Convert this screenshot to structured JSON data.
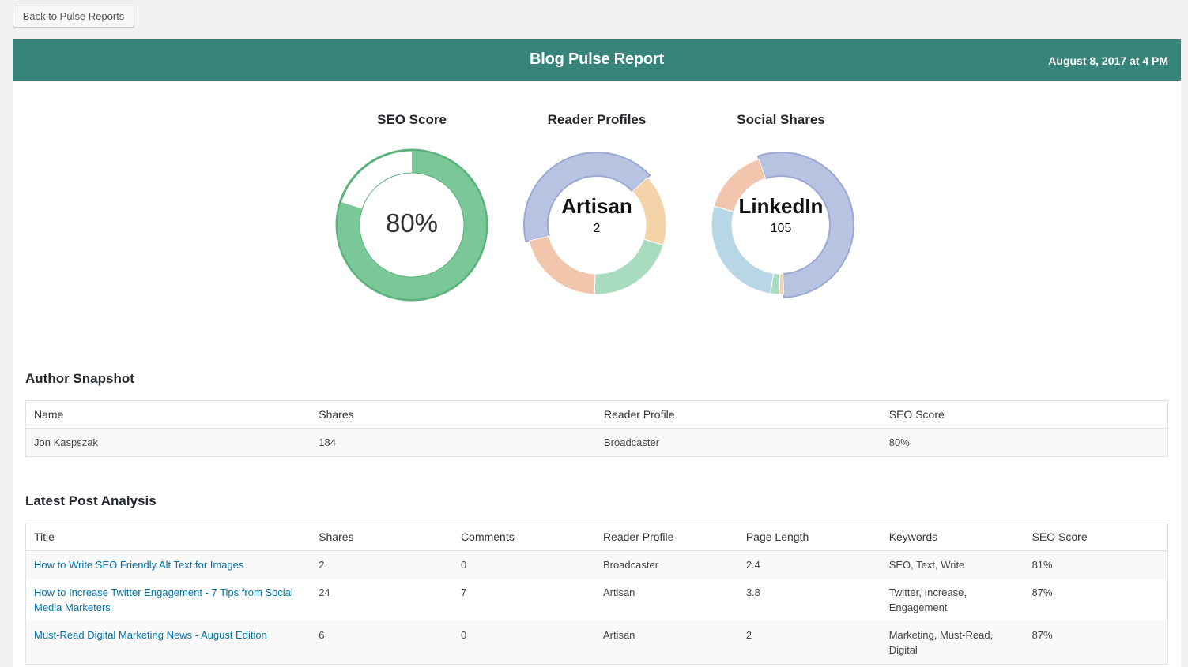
{
  "back_button": {
    "label": "Back to Pulse Reports"
  },
  "header": {
    "title": "Blog Pulse Report",
    "date": "August 8, 2017 at 4 PM",
    "color": "#37857a"
  },
  "charts": {
    "seo": {
      "title": "SEO Score",
      "center": "80%",
      "percent": 80,
      "color": "#7ac797",
      "border_color": "#5cb27c"
    },
    "reader": {
      "title": "Reader Profiles",
      "center_label": "Artisan",
      "center_value": "2",
      "slices": [
        {
          "value": 2,
          "color": "#b8c3e2",
          "highlight": true
        },
        {
          "value": 0.8,
          "color": "#f5d3a8"
        },
        {
          "value": 1,
          "color": "#a9dcbe"
        },
        {
          "value": 1,
          "color": "#f2c6ad"
        }
      ]
    },
    "social": {
      "title": "Social Shares",
      "center_label": "LinkedIn",
      "center_value": "105",
      "slices": [
        {
          "value": 105,
          "color": "#b8c3e2",
          "highlight": true
        },
        {
          "value": 2,
          "color": "#f5d3a8"
        },
        {
          "value": 4,
          "color": "#a9dcbe"
        },
        {
          "value": 52,
          "color": "#b7d6e6"
        },
        {
          "value": 30,
          "color": "#f2c6ad"
        }
      ]
    }
  },
  "author_snapshot": {
    "title": "Author Snapshot",
    "columns": [
      "Name",
      "Shares",
      "Reader Profile",
      "SEO Score"
    ],
    "rows": [
      [
        "Jon Kaspszak",
        "184",
        "Broadcaster",
        "80%"
      ]
    ]
  },
  "latest_posts": {
    "title": "Latest Post Analysis",
    "columns": [
      "Title",
      "Shares",
      "Comments",
      "Reader Profile",
      "Page Length",
      "Keywords",
      "SEO Score"
    ],
    "rows": [
      [
        "How to Write SEO Friendly Alt Text for Images",
        "2",
        "0",
        "Broadcaster",
        "2.4",
        "SEO, Text, Write",
        "81%"
      ],
      [
        "How to Increase Twitter Engagement - 7 Tips from Social Media Marketers",
        "24",
        "7",
        "Artisan",
        "3.8",
        "Twitter, Increase, Engagement",
        "87%"
      ],
      [
        "Must-Read Digital Marketing News - August Edition",
        "6",
        "0",
        "Artisan",
        "2",
        "Marketing, Must-Read, Digital",
        "87%"
      ]
    ]
  }
}
